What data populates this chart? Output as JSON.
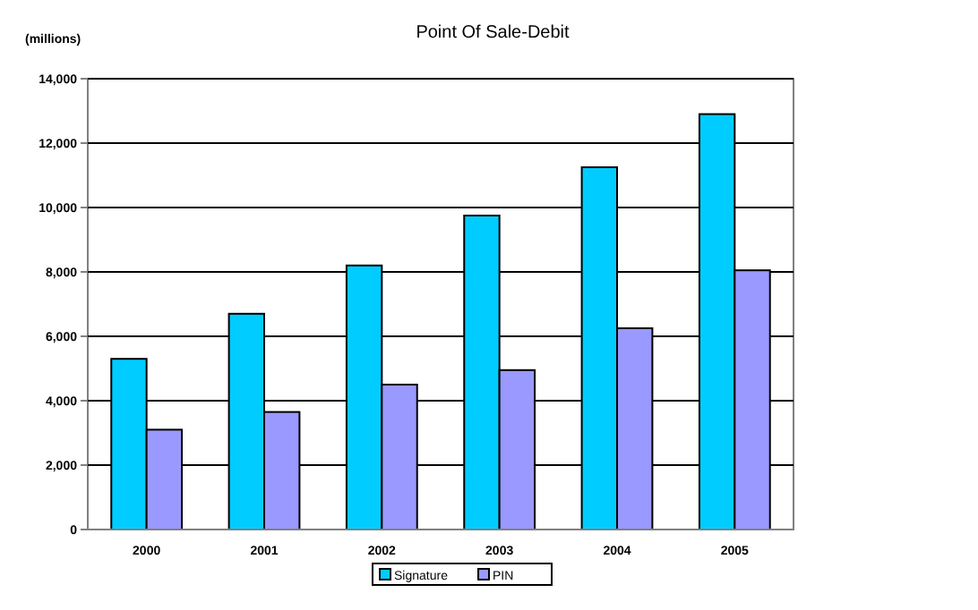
{
  "chart_data": {
    "type": "bar",
    "title": "Point Of Sale-Debit",
    "ylabel": "(millions)",
    "categories": [
      "2000",
      "2001",
      "2002",
      "2003",
      "2004",
      "2005"
    ],
    "series": [
      {
        "name": "Signature",
        "color": "#00ccff",
        "values": [
          5300,
          6700,
          8200,
          9750,
          11250,
          12900
        ]
      },
      {
        "name": "PIN",
        "color": "#9999ff",
        "values": [
          3100,
          3650,
          4500,
          4950,
          6250,
          8050
        ]
      }
    ],
    "ylim": [
      0,
      14000
    ],
    "yticks": [
      {
        "value": 0,
        "label": "0"
      },
      {
        "value": 2000,
        "label": "2,000"
      },
      {
        "value": 4000,
        "label": "4,000"
      },
      {
        "value": 6000,
        "label": "6,000"
      },
      {
        "value": 8000,
        "label": "8,000"
      },
      {
        "value": 10000,
        "label": "10,000"
      },
      {
        "value": 12000,
        "label": "12,000"
      },
      {
        "value": 14000,
        "label": "14,000"
      }
    ],
    "grid": "y",
    "legend": "bottom"
  }
}
